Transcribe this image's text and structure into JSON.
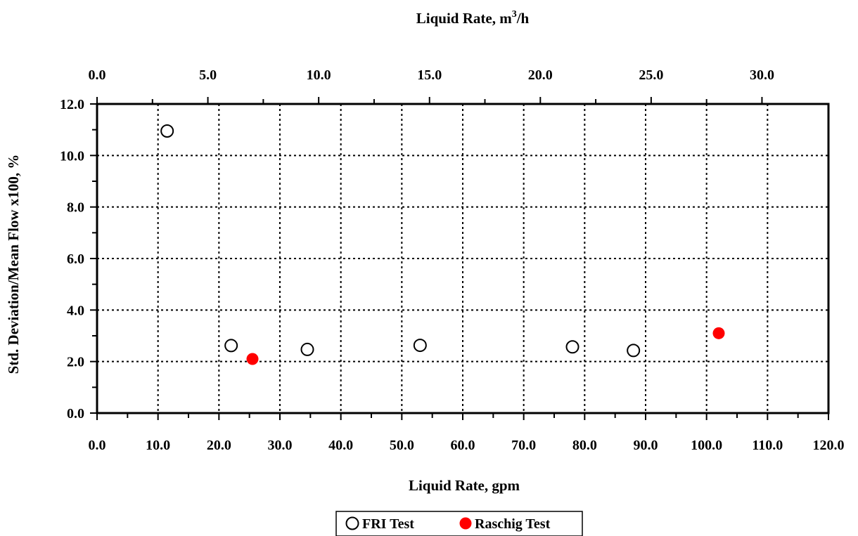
{
  "chart_data": {
    "type": "scatter",
    "xlabel": "Liquid Rate, gpm",
    "x2label_main": "Liquid Rate, m",
    "x2label_sup": "3",
    "x2label_tail": "/h",
    "ylabel": "Std. Deviation/Mean Flow x100, %",
    "xlim": [
      0,
      120
    ],
    "ylim": [
      0,
      12
    ],
    "x2lim": [
      0,
      33.0
    ],
    "grid": true,
    "legend_position": "bottom-center",
    "x_ticks": [
      0,
      10,
      20,
      30,
      40,
      50,
      60,
      70,
      80,
      90,
      100,
      110,
      120
    ],
    "x_tick_labels": [
      "0.0",
      "10.0",
      "20.0",
      "30.0",
      "40.0",
      "50.0",
      "60.0",
      "70.0",
      "80.0",
      "90.0",
      "100.0",
      "110.0",
      "120.0"
    ],
    "y_ticks": [
      0,
      2,
      4,
      6,
      8,
      10,
      12
    ],
    "y_tick_labels": [
      "0.0",
      "2.0",
      "4.0",
      "6.0",
      "8.0",
      "10.0",
      "12.0"
    ],
    "x2_ticks": [
      0,
      5,
      10,
      15,
      20,
      25,
      30
    ],
    "x2_tick_labels": [
      "0.0",
      "5.0",
      "10.0",
      "15.0",
      "20.0",
      "25.0",
      "30.0"
    ],
    "series": [
      {
        "name": "FRI Test",
        "marker": "open-circle",
        "color": "#000000",
        "points": [
          {
            "x": 11.5,
            "y": 10.95
          },
          {
            "x": 22.0,
            "y": 2.62
          },
          {
            "x": 34.5,
            "y": 2.47
          },
          {
            "x": 53.0,
            "y": 2.63
          },
          {
            "x": 78.0,
            "y": 2.57
          },
          {
            "x": 88.0,
            "y": 2.43
          }
        ]
      },
      {
        "name": "Raschig Test",
        "marker": "filled-circle",
        "color": "#ff0000",
        "points": [
          {
            "x": 25.5,
            "y": 2.1
          },
          {
            "x": 102.0,
            "y": 3.1
          }
        ]
      }
    ]
  }
}
